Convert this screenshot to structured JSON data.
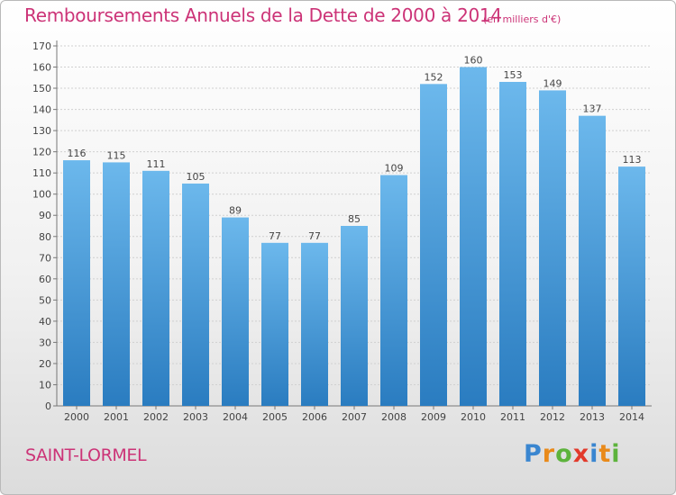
{
  "title": "Remboursements Annuels de la Dette de 2000 à 2014",
  "subtitle": "(en milliers d'€)",
  "commune": "SAINT-LORMEL",
  "logo": {
    "p": "P",
    "r": "r",
    "o": "o",
    "x": "x",
    "i1": "i",
    "t": "t",
    "i2": "i"
  },
  "colors": {
    "title": "#cc3377",
    "bar_light": "#6cb8ec",
    "bar_dark": "#2a7cc0",
    "grid": "#d0d0d0"
  },
  "chart_data": {
    "type": "bar",
    "categories": [
      "2000",
      "2001",
      "2002",
      "2003",
      "2004",
      "2005",
      "2006",
      "2007",
      "2008",
      "2009",
      "2010",
      "2011",
      "2012",
      "2013",
      "2014"
    ],
    "values": [
      116,
      115,
      111,
      105,
      89,
      77,
      77,
      85,
      109,
      152,
      160,
      153,
      149,
      137,
      113
    ],
    "title": "Remboursements Annuels de la Dette de 2000 à 2014",
    "xlabel": "",
    "ylabel": "",
    "ylim": [
      0,
      170
    ],
    "ytick_step": 10,
    "grid": true,
    "data_labels": true
  }
}
